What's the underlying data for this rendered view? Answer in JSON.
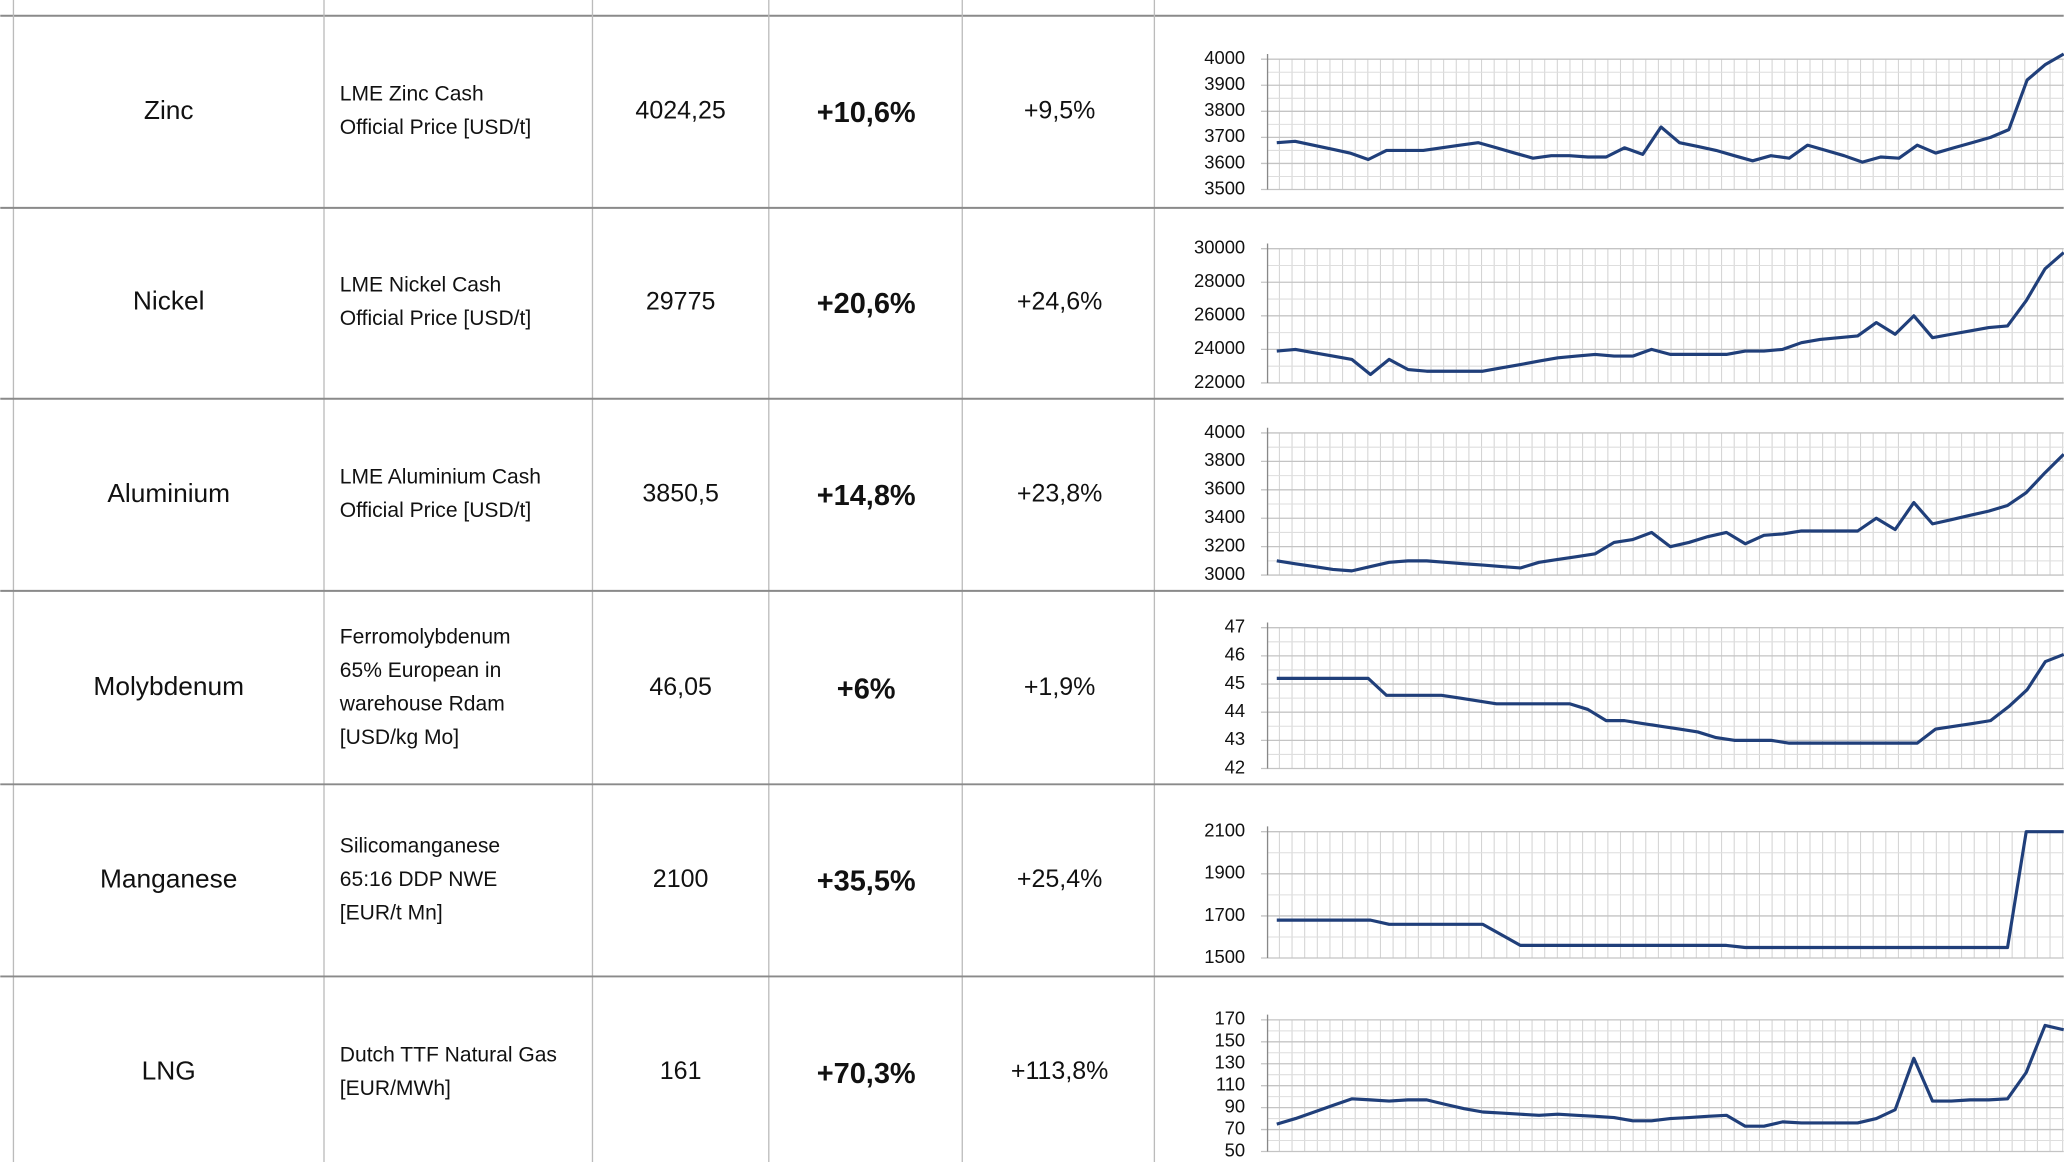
{
  "table": {
    "rows": [
      [
        "Zinc",
        [
          "LME Zinc  Cash",
          "Official Price [USD/t]"
        ],
        "4024,25",
        "+10,6%",
        "+9,5%"
      ],
      [
        "Nickel",
        [
          "LME Nickel Cash",
          "Official Price [USD/t]"
        ],
        "29775",
        "+20,6%",
        "+24,6%"
      ],
      [
        "Aluminium",
        [
          "LME Aluminium Cash",
          "Official Price [USD/t]"
        ],
        "3850,5",
        "+14,8%",
        "+23,8%"
      ],
      [
        "Molybdenum",
        [
          "Ferromolybdenum",
          "65% European in",
          "warehouse Rdam",
          "[USD/kg Mo]"
        ],
        "46,05",
        "+6%",
        "+1,9%"
      ],
      [
        "Manganese",
        [
          "Silicomanganese",
          "65:16 DDP NWE",
          "[EUR/t Mn]"
        ],
        "2100",
        "+35,5%",
        "+25,4%"
      ],
      [
        "LNG",
        [
          "Dutch TTF Natural Gas",
          "[EUR/MWh]"
        ],
        "161",
        "+70,3%",
        "+113,8%"
      ]
    ]
  },
  "chart_data": [
    {
      "type": "line",
      "color": "#203f7a",
      "grid": true,
      "ylim": [
        3500,
        4000
      ],
      "yticks": [
        3500,
        3600,
        3700,
        3800,
        3900,
        4000
      ],
      "values": [
        3680,
        3685,
        3670,
        3655,
        3640,
        3615,
        3650,
        3650,
        3650,
        3660,
        3670,
        3680,
        3660,
        3640,
        3620,
        3630,
        3630,
        3625,
        3625,
        3660,
        3635,
        3740,
        3680,
        3665,
        3650,
        3630,
        3610,
        3630,
        3620,
        3670,
        3650,
        3630,
        3605,
        3625,
        3620,
        3670,
        3640,
        3660,
        3680,
        3700,
        3730,
        3920,
        3980,
        4020
      ]
    },
    {
      "type": "line",
      "color": "#203f7a",
      "grid": true,
      "ylim": [
        22000,
        30000
      ],
      "yticks": [
        22000,
        24000,
        26000,
        28000,
        30000
      ],
      "values": [
        23900,
        24000,
        23800,
        23600,
        23400,
        22500,
        23400,
        22800,
        22700,
        22700,
        22700,
        22700,
        22900,
        23100,
        23300,
        23500,
        23600,
        23700,
        23600,
        23600,
        24000,
        23700,
        23700,
        23700,
        23700,
        23900,
        23900,
        24000,
        24400,
        24600,
        24700,
        24800,
        25600,
        24900,
        26000,
        24700,
        24900,
        25100,
        25300,
        25400,
        26900,
        28800,
        29775
      ]
    },
    {
      "type": "line",
      "color": "#203f7a",
      "grid": true,
      "ylim": [
        3000,
        4000
      ],
      "yticks": [
        3000,
        3200,
        3400,
        3600,
        3800,
        4000
      ],
      "values": [
        3100,
        3080,
        3060,
        3040,
        3030,
        3060,
        3090,
        3100,
        3100,
        3090,
        3080,
        3070,
        3060,
        3050,
        3090,
        3110,
        3130,
        3150,
        3230,
        3250,
        3300,
        3200,
        3230,
        3270,
        3300,
        3220,
        3280,
        3290,
        3310,
        3310,
        3310,
        3310,
        3400,
        3320,
        3510,
        3360,
        3390,
        3420,
        3450,
        3490,
        3580,
        3720,
        3850
      ]
    },
    {
      "type": "line",
      "color": "#203f7a",
      "grid": true,
      "ylim": [
        42,
        47
      ],
      "yticks": [
        42,
        43,
        44,
        45,
        46,
        47
      ],
      "values": [
        45.2,
        45.2,
        45.2,
        45.2,
        45.2,
        45.2,
        44.6,
        44.6,
        44.6,
        44.6,
        44.5,
        44.4,
        44.3,
        44.3,
        44.3,
        44.3,
        44.3,
        44.1,
        43.7,
        43.7,
        43.6,
        43.5,
        43.4,
        43.3,
        43.1,
        43.0,
        43.0,
        43.0,
        42.9,
        42.9,
        42.9,
        42.9,
        42.9,
        42.9,
        42.9,
        42.9,
        43.4,
        43.5,
        43.6,
        43.7,
        44.2,
        44.8,
        45.8,
        46.05
      ]
    },
    {
      "type": "line",
      "color": "#203f7a",
      "grid": true,
      "ylim": [
        1500,
        2100
      ],
      "yticks": [
        1500,
        1700,
        1900,
        2100
      ],
      "values": [
        1680,
        1680,
        1680,
        1680,
        1680,
        1680,
        1660,
        1660,
        1660,
        1660,
        1660,
        1660,
        1610,
        1560,
        1560,
        1560,
        1560,
        1560,
        1560,
        1560,
        1560,
        1560,
        1560,
        1560,
        1560,
        1550,
        1550,
        1550,
        1550,
        1550,
        1550,
        1550,
        1550,
        1550,
        1550,
        1550,
        1550,
        1550,
        1550,
        1550,
        2100,
        2100,
        2100
      ]
    },
    {
      "type": "line",
      "color": "#203f7a",
      "grid": true,
      "ylim": [
        50,
        170
      ],
      "yticks": [
        50,
        70,
        90,
        110,
        130,
        150,
        170
      ],
      "values": [
        75,
        80,
        86,
        92,
        98,
        97,
        96,
        97,
        97,
        93,
        89,
        86,
        85,
        84,
        83,
        84,
        83,
        82,
        81,
        78,
        78,
        80,
        81,
        82,
        83,
        73,
        73,
        77,
        76,
        76,
        76,
        76,
        80,
        88,
        135,
        96,
        96,
        97,
        97,
        98,
        122,
        165,
        161
      ]
    }
  ]
}
